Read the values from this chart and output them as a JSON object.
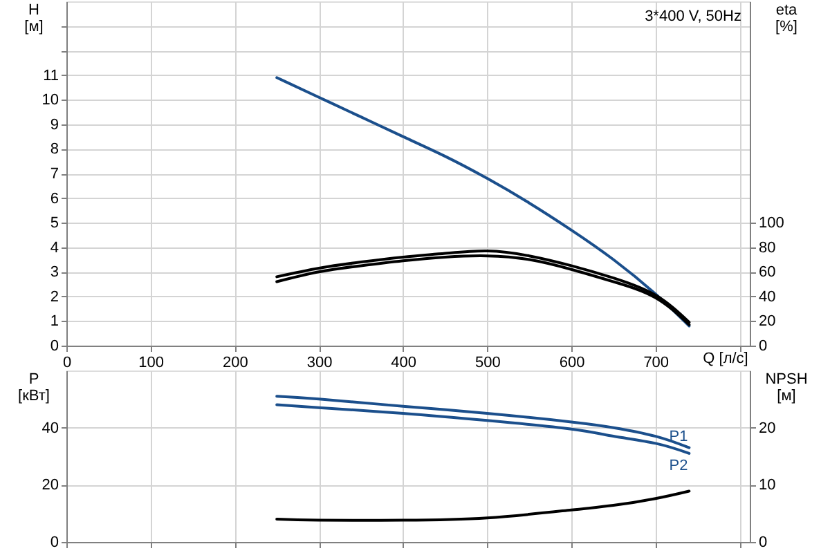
{
  "chart_data": [
    {
      "type": "line",
      "title": "3*400 V, 50Hz",
      "xlabel": "Q [л/с]",
      "ylabel": "H [м]",
      "y2label": "eta [%]",
      "x": [
        250,
        300,
        350,
        400,
        450,
        500,
        550,
        600,
        650,
        700,
        740
      ],
      "series": [
        {
          "color": "#1b4f8c",
          "values": [
            10.9,
            10.1,
            9.3,
            8.5,
            7.7,
            6.8,
            5.8,
            4.7,
            3.5,
            2.1,
            0.8
          ]
        },
        {
          "color": "#000000",
          "axis": "y2",
          "values": [
            56,
            63,
            68,
            72,
            75,
            77,
            73,
            65,
            55,
            41,
            19
          ]
        },
        {
          "color": "#000000",
          "axis": "y2",
          "values": [
            52,
            60,
            65,
            69,
            72,
            73,
            70,
            62,
            52,
            39,
            17
          ]
        }
      ],
      "xlim": [
        0,
        812
      ],
      "xticks": [
        0,
        100,
        200,
        300,
        400,
        500,
        600,
        700,
        {
          "value": 800,
          "label": null
        }
      ],
      "ylim": [
        0,
        14
      ],
      "yticks": [
        0,
        1,
        2,
        3,
        4,
        5,
        6,
        7,
        8,
        9,
        10,
        11,
        {
          "value": 12,
          "label": null
        },
        {
          "value": 13,
          "label": null
        }
      ],
      "y2lim": [
        0,
        280
      ],
      "y2ticks": [
        0,
        20,
        40,
        60,
        80,
        100
      ],
      "grid": true
    },
    {
      "type": "line",
      "ylabel": "P [кВт]",
      "y2label": "NPSH [м]",
      "x": [
        250,
        300,
        400,
        500,
        600,
        650,
        700,
        740
      ],
      "series": [
        {
          "name": "P1",
          "color": "#1b4f8c",
          "values": [
            51,
            50,
            47.5,
            45,
            42,
            40,
            37,
            33
          ]
        },
        {
          "name": "P2",
          "color": "#1b4f8c",
          "values": [
            48,
            47,
            45,
            42.5,
            39.5,
            37,
            34.5,
            31
          ]
        },
        {
          "color": "#000000",
          "axis": "y2",
          "values": [
            4,
            3.8,
            3.8,
            4.2,
            5.6,
            6.4,
            7.6,
            8.9
          ]
        }
      ],
      "xlim": [
        0,
        812
      ],
      "xticks": [
        0,
        100,
        200,
        300,
        400,
        500,
        600,
        700,
        800
      ],
      "ylim": [
        0,
        60
      ],
      "yticks": [
        0,
        20,
        40
      ],
      "y2lim": [
        0,
        30
      ],
      "y2ticks": [
        0,
        10,
        20
      ],
      "grid": true,
      "tick_labels": "y"
    }
  ]
}
